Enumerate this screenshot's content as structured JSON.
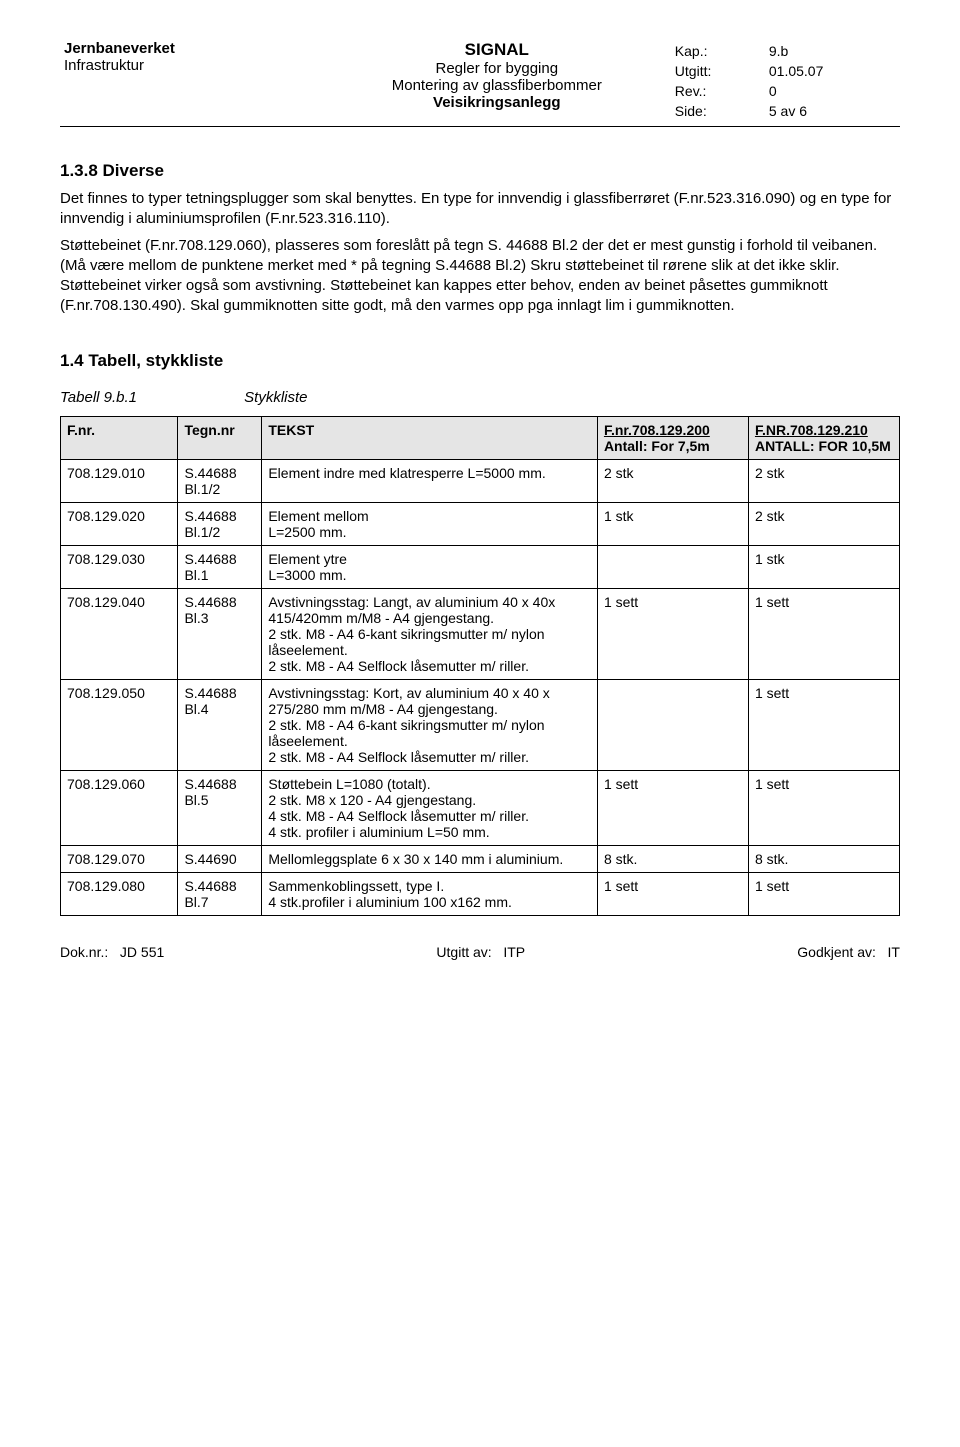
{
  "header": {
    "org": "Jernbaneverket",
    "dept": "Infrastruktur",
    "centerTitle": "SIGNAL",
    "centerLine2": "Regler for bygging",
    "centerLine3": "Montering av glassfiberbommer",
    "centerLine4": "Veisikringsanlegg",
    "kapLabel": "Kap.:",
    "kapVal": "9.b",
    "utgittLabel": "Utgitt:",
    "utgittVal": "01.05.07",
    "revLabel": "Rev.:",
    "revVal": "0",
    "sideLabel": "Side:",
    "sideVal": "5 av 6"
  },
  "sections": {
    "s138": {
      "heading": "1.3.8  Diverse",
      "p1": "Det finnes to typer tetningsplugger som skal benyttes. En type for innvendig i glassfiberrøret (F.nr.523.316.090) og en type for innvendig i aluminiumsprofilen (F.nr.523.316.110).",
      "p2": "Støttebeinet (F.nr.708.129.060), plasseres som foreslått på tegn S. 44688 Bl.2 der det er mest gunstig i forhold til veibanen. (Må være mellom de punktene merket med * på tegning S.44688 Bl.2) Skru støttebeinet til rørene slik at det ikke sklir. Støttebeinet virker også som avstivning. Støttebeinet kan kappes etter behov, enden av beinet påsettes gummiknott (F.nr.708.130.490). Skal gummiknotten sitte godt, må den varmes opp pga innlagt lim i gummiknotten."
    },
    "s14": {
      "heading": "1.4     Tabell, stykkliste",
      "captionLabel": "Tabell 9.b.1",
      "captionText": "Stykkliste"
    }
  },
  "table": {
    "headers": {
      "fnr": "F.nr.",
      "tegn": "Tegn.nr",
      "tekst": "TEKST",
      "colA_top": "F.nr.708.129.200",
      "colA_sub": "Antall: For 7,5m",
      "colB_top": "F.NR.708.129.210",
      "colB_sub": "ANTALL: FOR 10,5M"
    },
    "rows": [
      {
        "fnr": "708.129.010",
        "tegn": "S.44688 Bl.1/2",
        "tekst": "Element indre med klatresperre L=5000 mm.",
        "a": "2 stk",
        "b": "2 stk"
      },
      {
        "fnr": "708.129.020",
        "tegn": "S.44688 Bl.1/2",
        "tekst": "Element mellom\nL=2500 mm.",
        "a": "1 stk",
        "b": "2 stk"
      },
      {
        "fnr": "708.129.030",
        "tegn": "S.44688 Bl.1",
        "tekst": "Element ytre\nL=3000 mm.",
        "a": "",
        "b": "1 stk"
      },
      {
        "fnr": "708.129.040",
        "tegn": "S.44688 Bl.3",
        "tekst": "Avstivningsstag: Langt, av aluminium 40 x 40x 415/420mm m/M8 - A4 gjengestang.\n2 stk. M8 - A4 6-kant sikringsmutter m/ nylon låseelement.\n2 stk. M8 - A4 Selflock låsemutter m/ riller.",
        "a": "1 sett",
        "b": "1 sett"
      },
      {
        "fnr": "708.129.050",
        "tegn": "S.44688 Bl.4",
        "tekst": "Avstivningsstag: Kort, av aluminium 40 x 40 x 275/280 mm m/M8 - A4 gjengestang.\n2 stk. M8 - A4 6-kant sikringsmutter m/ nylon låseelement.\n2 stk. M8 - A4 Selflock låsemutter m/ riller.",
        "a": "",
        "b": "1 sett"
      },
      {
        "fnr": "708.129.060",
        "tegn": "S.44688 Bl.5",
        "tekst": "Støttebein L=1080 (totalt).\n2 stk. M8 x 120 - A4 gjengestang.\n4 stk. M8 - A4 Selflock låsemutter m/ riller.\n4 stk. profiler i aluminium L=50 mm.",
        "a": "1 sett",
        "b": "1 sett"
      },
      {
        "fnr": "708.129.070",
        "tegn": "S.44690",
        "tekst": "Mellomleggsplate 6 x 30 x 140 mm i aluminium.",
        "a": "8 stk.",
        "b": "8 stk."
      },
      {
        "fnr": "708.129.080",
        "tegn": "S.44688 Bl.7",
        "tekst": "Sammenkoblingssett, type I.\n4 stk.profiler i aluminium 100 x162 mm.",
        "a": "1 sett",
        "b": "1 sett"
      }
    ]
  },
  "footer": {
    "leftLabel": "Dok.nr.:",
    "leftVal": "JD 551",
    "midLabel": "Utgitt av:",
    "midVal": "ITP",
    "rightLabel": "Godkjent av:",
    "rightVal": "IT"
  }
}
